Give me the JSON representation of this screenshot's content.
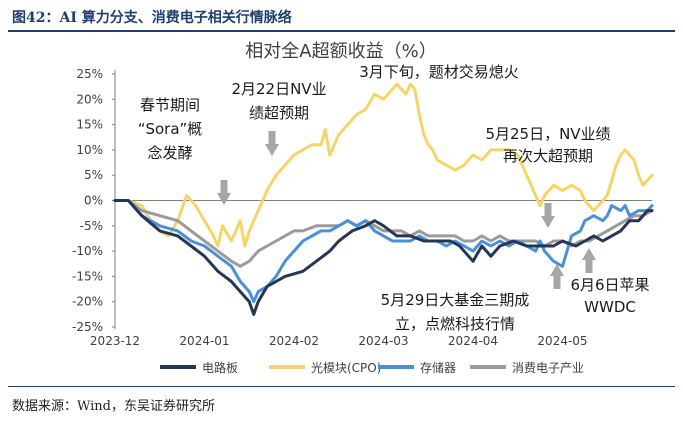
{
  "figure": {
    "title": "图42：AI 算力分支、消费电子相关行情脉络",
    "source": "数据来源：Wind，东吴证券研究所"
  },
  "chart_data": {
    "type": "line",
    "title": "相对全A超额收益（%）",
    "xlabel": "",
    "ylabel": "",
    "ylim": [
      -25,
      25
    ],
    "yticks": [
      25,
      20,
      15,
      10,
      5,
      0,
      -5,
      -10,
      -15,
      -20,
      -25
    ],
    "ytick_labels": [
      "25%",
      "20%",
      "15%",
      "10%",
      "5%",
      "0%",
      "-5%",
      "-10%",
      "-15%",
      "-20%",
      "-25%"
    ],
    "xtick_labels": [
      "2023-12",
      "2024-01",
      "2024-02",
      "2024-03",
      "2024-04",
      "2024-05"
    ],
    "x_index_range": [
      0,
      120
    ],
    "grid": false,
    "legend_position": "bottom",
    "colors": {
      "电路板": "#253754",
      "光模块(CPO)": "#f6d568",
      "存储器": "#4a90d9",
      "消费电子产业": "#9b9b9b",
      "arrow": "#a6a6a6",
      "axis": "#7f7f7f",
      "title_bar": "#1f3f6e"
    },
    "series": [
      {
        "name": "电路板",
        "points": [
          [
            0,
            0
          ],
          [
            3,
            0
          ],
          [
            6,
            -3
          ],
          [
            10,
            -6
          ],
          [
            14,
            -7
          ],
          [
            17,
            -9
          ],
          [
            20,
            -11
          ],
          [
            23,
            -14
          ],
          [
            26,
            -16
          ],
          [
            28,
            -18
          ],
          [
            30,
            -20
          ],
          [
            31,
            -22.5
          ],
          [
            32,
            -20
          ],
          [
            34,
            -17
          ],
          [
            36,
            -16
          ],
          [
            38,
            -15
          ],
          [
            42,
            -14
          ],
          [
            45,
            -12
          ],
          [
            48,
            -10
          ],
          [
            50,
            -8
          ],
          [
            53,
            -6
          ],
          [
            56,
            -5
          ],
          [
            58,
            -4
          ],
          [
            60,
            -5
          ],
          [
            63,
            -7
          ],
          [
            66,
            -7
          ],
          [
            69,
            -8
          ],
          [
            72,
            -8
          ],
          [
            75,
            -8
          ],
          [
            77,
            -9
          ],
          [
            80,
            -12
          ],
          [
            82,
            -9
          ],
          [
            84,
            -11
          ],
          [
            86,
            -9
          ],
          [
            89,
            -8
          ],
          [
            92,
            -9
          ],
          [
            95,
            -9
          ],
          [
            98,
            -9
          ],
          [
            100,
            -8
          ],
          [
            103,
            -9
          ],
          [
            105,
            -8
          ],
          [
            107,
            -7
          ],
          [
            109,
            -8
          ],
          [
            111,
            -7
          ],
          [
            113,
            -6
          ],
          [
            115,
            -4
          ],
          [
            117,
            -4
          ],
          [
            119,
            -2
          ],
          [
            120,
            -2
          ]
        ]
      },
      {
        "name": "光模块(CPO)",
        "points": [
          [
            0,
            0
          ],
          [
            3,
            0
          ],
          [
            6,
            -1
          ],
          [
            8,
            -4
          ],
          [
            10,
            -6
          ],
          [
            12,
            -7
          ],
          [
            14,
            -4
          ],
          [
            16,
            1
          ],
          [
            18,
            -1
          ],
          [
            20,
            -4
          ],
          [
            22,
            -7
          ],
          [
            23,
            -9
          ],
          [
            24,
            -5
          ],
          [
            26,
            -8
          ],
          [
            27,
            -6
          ],
          [
            28,
            -4
          ],
          [
            29,
            -9
          ],
          [
            30,
            -6
          ],
          [
            32,
            -2
          ],
          [
            34,
            2
          ],
          [
            36,
            5
          ],
          [
            38,
            7
          ],
          [
            40,
            9
          ],
          [
            42,
            10
          ],
          [
            44,
            11
          ],
          [
            46,
            11
          ],
          [
            47,
            14
          ],
          [
            48,
            9
          ],
          [
            50,
            13
          ],
          [
            52,
            15
          ],
          [
            54,
            17
          ],
          [
            56,
            18
          ],
          [
            58,
            21
          ],
          [
            60,
            20
          ],
          [
            62,
            22
          ],
          [
            63,
            23
          ],
          [
            64,
            22
          ],
          [
            65,
            21
          ],
          [
            66,
            23
          ],
          [
            67,
            22
          ],
          [
            68,
            17
          ],
          [
            69,
            13
          ],
          [
            70,
            11
          ],
          [
            71,
            10
          ],
          [
            72,
            8
          ],
          [
            74,
            7
          ],
          [
            76,
            6
          ],
          [
            78,
            7
          ],
          [
            80,
            9
          ],
          [
            82,
            8
          ],
          [
            84,
            10
          ],
          [
            86,
            10
          ],
          [
            88,
            10
          ],
          [
            90,
            9
          ],
          [
            92,
            5
          ],
          [
            94,
            1
          ],
          [
            95,
            -1
          ],
          [
            96,
            1
          ],
          [
            97,
            2
          ],
          [
            98,
            3
          ],
          [
            100,
            2
          ],
          [
            102,
            3
          ],
          [
            104,
            2
          ],
          [
            105,
            0
          ],
          [
            106,
            -1
          ],
          [
            107,
            -2
          ],
          [
            108,
            -1
          ],
          [
            110,
            1
          ],
          [
            111,
            4
          ],
          [
            112,
            7
          ],
          [
            113,
            9
          ],
          [
            114,
            10
          ],
          [
            115,
            9
          ],
          [
            116,
            8
          ],
          [
            117,
            5
          ],
          [
            118,
            3
          ],
          [
            119,
            4
          ],
          [
            120,
            5
          ]
        ]
      },
      {
        "name": "存储器",
        "points": [
          [
            0,
            0
          ],
          [
            3,
            0
          ],
          [
            6,
            -3
          ],
          [
            10,
            -5
          ],
          [
            14,
            -6
          ],
          [
            17,
            -8
          ],
          [
            20,
            -9
          ],
          [
            23,
            -11
          ],
          [
            26,
            -13
          ],
          [
            28,
            -16
          ],
          [
            30,
            -18
          ],
          [
            31,
            -20
          ],
          [
            32,
            -18
          ],
          [
            34,
            -17
          ],
          [
            36,
            -15
          ],
          [
            38,
            -12
          ],
          [
            40,
            -10
          ],
          [
            42,
            -8
          ],
          [
            44,
            -7
          ],
          [
            46,
            -6
          ],
          [
            48,
            -6
          ],
          [
            50,
            -5
          ],
          [
            52,
            -4
          ],
          [
            54,
            -5
          ],
          [
            56,
            -4
          ],
          [
            58,
            -6
          ],
          [
            60,
            -7
          ],
          [
            62,
            -8
          ],
          [
            64,
            -8
          ],
          [
            66,
            -8
          ],
          [
            68,
            -7
          ],
          [
            70,
            -8
          ],
          [
            72,
            -8
          ],
          [
            74,
            -9
          ],
          [
            76,
            -8
          ],
          [
            78,
            -9
          ],
          [
            80,
            -10
          ],
          [
            82,
            -8
          ],
          [
            84,
            -9
          ],
          [
            86,
            -8
          ],
          [
            88,
            -9
          ],
          [
            90,
            -8
          ],
          [
            92,
            -9
          ],
          [
            94,
            -10
          ],
          [
            95,
            -8
          ],
          [
            96,
            -10
          ],
          [
            98,
            -12
          ],
          [
            100,
            -13
          ],
          [
            101,
            -10
          ],
          [
            102,
            -7
          ],
          [
            104,
            -6
          ],
          [
            105,
            -4
          ],
          [
            107,
            -3
          ],
          [
            109,
            -4
          ],
          [
            110,
            -3
          ],
          [
            111,
            -1
          ],
          [
            113,
            -2
          ],
          [
            114,
            -1
          ],
          [
            115,
            -3
          ],
          [
            117,
            -2
          ],
          [
            119,
            -2
          ],
          [
            120,
            -1
          ]
        ]
      },
      {
        "name": "消费电子产业",
        "points": [
          [
            0,
            0
          ],
          [
            3,
            0
          ],
          [
            6,
            -2
          ],
          [
            10,
            -3
          ],
          [
            14,
            -4
          ],
          [
            17,
            -6
          ],
          [
            20,
            -8
          ],
          [
            23,
            -10
          ],
          [
            26,
            -12
          ],
          [
            28,
            -13
          ],
          [
            30,
            -12
          ],
          [
            32,
            -10
          ],
          [
            34,
            -9
          ],
          [
            36,
            -8
          ],
          [
            38,
            -7
          ],
          [
            40,
            -6
          ],
          [
            42,
            -6
          ],
          [
            45,
            -5
          ],
          [
            48,
            -5
          ],
          [
            50,
            -5
          ],
          [
            52,
            -4
          ],
          [
            54,
            -5
          ],
          [
            56,
            -4
          ],
          [
            58,
            -5
          ],
          [
            60,
            -6
          ],
          [
            62,
            -6
          ],
          [
            64,
            -6
          ],
          [
            66,
            -7
          ],
          [
            68,
            -6
          ],
          [
            70,
            -7
          ],
          [
            72,
            -7
          ],
          [
            74,
            -7
          ],
          [
            76,
            -7
          ],
          [
            78,
            -8
          ],
          [
            80,
            -8
          ],
          [
            82,
            -7
          ],
          [
            84,
            -8
          ],
          [
            86,
            -7
          ],
          [
            88,
            -8
          ],
          [
            90,
            -8
          ],
          [
            92,
            -8
          ],
          [
            94,
            -8
          ],
          [
            96,
            -9
          ],
          [
            98,
            -8
          ],
          [
            100,
            -8
          ],
          [
            102,
            -9
          ],
          [
            104,
            -8
          ],
          [
            106,
            -8
          ],
          [
            108,
            -7
          ],
          [
            110,
            -6
          ],
          [
            112,
            -5
          ],
          [
            114,
            -4
          ],
          [
            116,
            -3
          ],
          [
            118,
            -3
          ],
          [
            120,
            -2
          ]
        ]
      }
    ],
    "annotations": [
      {
        "id": "sora",
        "text": [
          "春节期间",
          "“Sora”概",
          "念发酵"
        ]
      },
      {
        "id": "nv-feb",
        "text": [
          "2月22日NV业",
          "绩超预期"
        ]
      },
      {
        "id": "march",
        "text": [
          "3月下旬，题材交易熄火"
        ]
      },
      {
        "id": "nv-may",
        "text": [
          "5月25日，NV业绩",
          "再次大超预期"
        ]
      },
      {
        "id": "fund",
        "text": [
          "5月29日大基金三期成",
          "立，点燃科技行情"
        ]
      },
      {
        "id": "apple",
        "text": [
          "6月6日苹果",
          "WWDC"
        ]
      }
    ]
  }
}
